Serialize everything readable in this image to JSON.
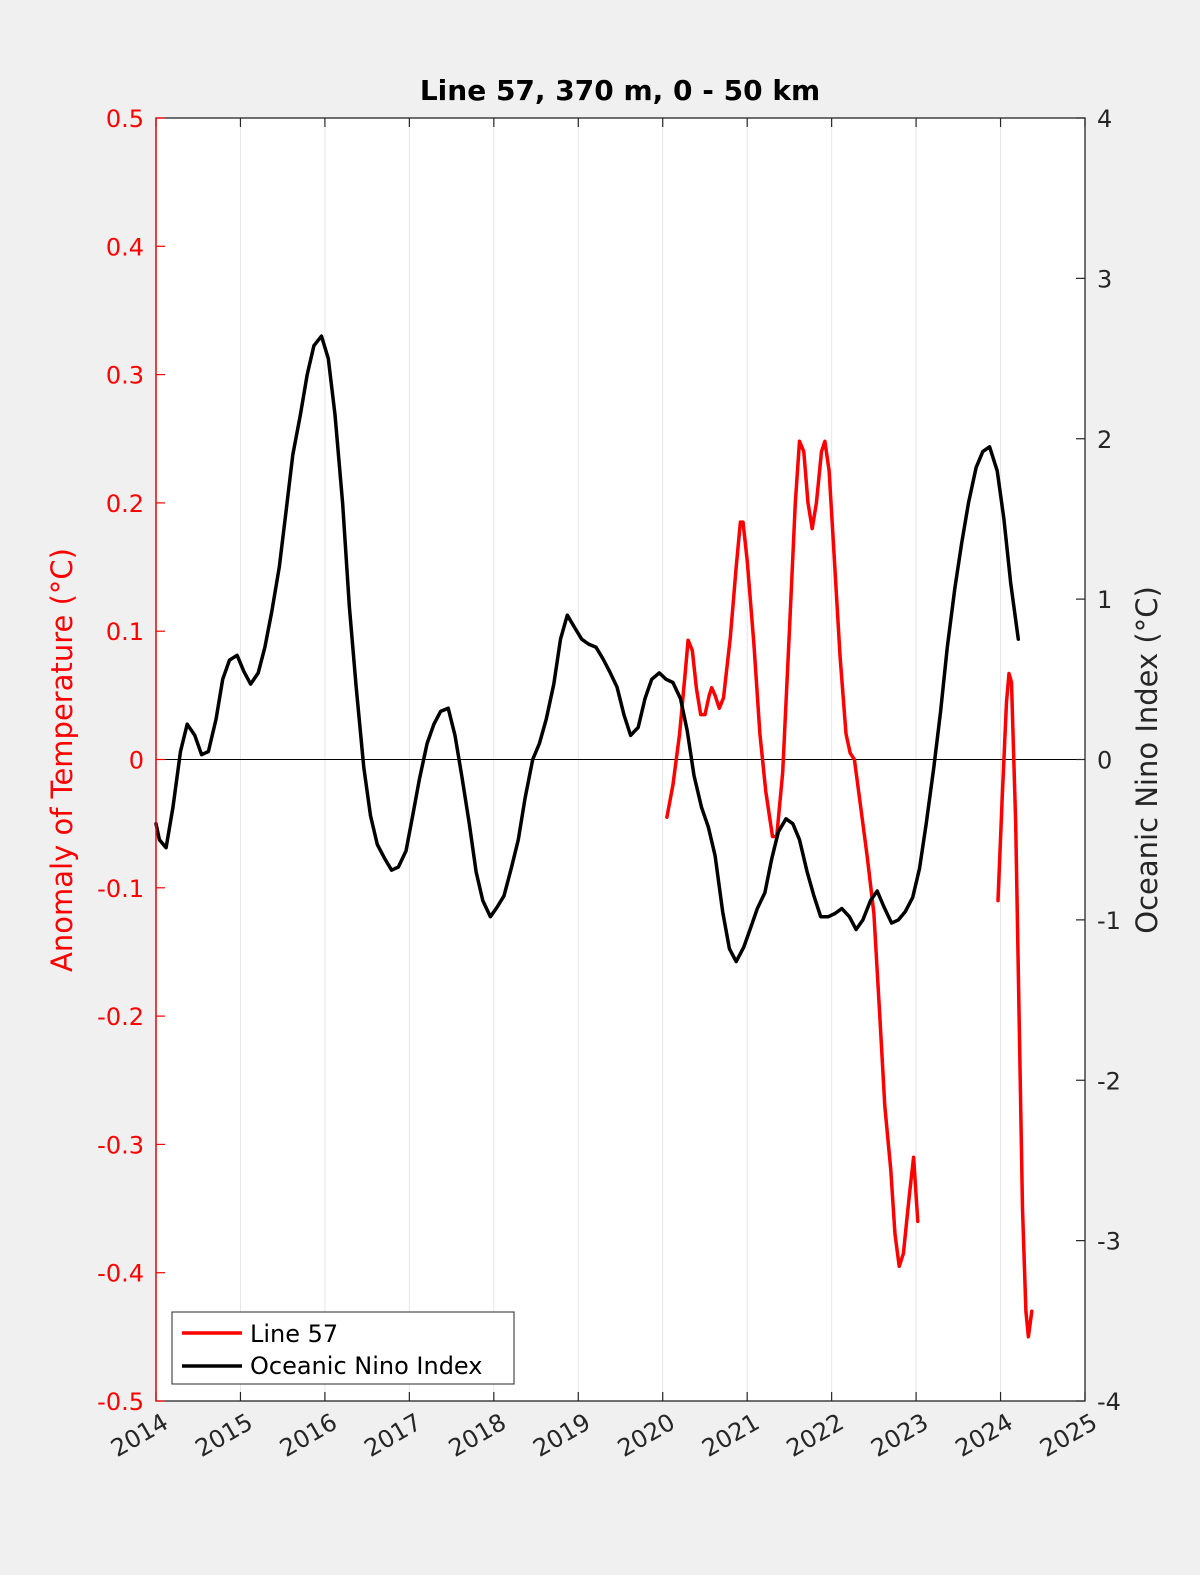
{
  "chart_data": {
    "type": "line",
    "title": "Line 57, 370 m, 0 - 50 km",
    "xlabel": "",
    "ylabel_left": "Anomaly of Temperature (°C)",
    "ylabel_right": "Oceanic Nino Index (°C)",
    "xlim": [
      2014,
      2025
    ],
    "ylim_left": [
      -0.5,
      0.5
    ],
    "ylim_right": [
      -4,
      4
    ],
    "x_ticks": [
      "2014",
      "2015",
      "2016",
      "2017",
      "2018",
      "2019",
      "2020",
      "2021",
      "2022",
      "2023",
      "2024",
      "2025"
    ],
    "y_left_ticks": [
      "0.5",
      "0.4",
      "0.3",
      "0.2",
      "0.1",
      "0",
      "-0.1",
      "-0.2",
      "-0.3",
      "-0.4",
      "-0.5"
    ],
    "y_right_ticks": [
      "4",
      "3",
      "2",
      "1",
      "0",
      "-1",
      "-2",
      "-3",
      "-4"
    ],
    "grid": "vertical",
    "legend_position": "bottom-left",
    "colors": {
      "line57": "#ff0000",
      "oni": "#000000",
      "left_axis": "#ff0000",
      "right_axis": "#262626"
    },
    "series": [
      {
        "name": "Line 57",
        "axis": "left",
        "segments": [
          [
            [
              2020.05,
              -0.045
            ],
            [
              2020.12,
              -0.02
            ],
            [
              2020.2,
              0.02
            ],
            [
              2020.27,
              0.07
            ],
            [
              2020.3,
              0.093
            ],
            [
              2020.35,
              0.085
            ],
            [
              2020.4,
              0.055
            ],
            [
              2020.45,
              0.035
            ],
            [
              2020.5,
              0.035
            ],
            [
              2020.55,
              0.05
            ],
            [
              2020.58,
              0.056
            ],
            [
              2020.62,
              0.05
            ],
            [
              2020.67,
              0.04
            ],
            [
              2020.72,
              0.048
            ],
            [
              2020.8,
              0.095
            ],
            [
              2020.87,
              0.15
            ],
            [
              2020.92,
              0.185
            ],
            [
              2020.95,
              0.185
            ],
            [
              2021.0,
              0.155
            ],
            [
              2021.08,
              0.09
            ],
            [
              2021.15,
              0.02
            ],
            [
              2021.22,
              -0.025
            ],
            [
              2021.3,
              -0.06
            ],
            [
              2021.35,
              -0.06
            ],
            [
              2021.42,
              -0.01
            ],
            [
              2021.5,
              0.1
            ],
            [
              2021.57,
              0.2
            ],
            [
              2021.62,
              0.248
            ],
            [
              2021.67,
              0.24
            ],
            [
              2021.72,
              0.2
            ],
            [
              2021.77,
              0.18
            ],
            [
              2021.82,
              0.2
            ],
            [
              2021.88,
              0.24
            ],
            [
              2021.92,
              0.248
            ],
            [
              2021.97,
              0.225
            ],
            [
              2022.02,
              0.17
            ],
            [
              2022.1,
              0.08
            ],
            [
              2022.17,
              0.02
            ],
            [
              2022.22,
              0.005
            ],
            [
              2022.27,
              0.0
            ],
            [
              2022.35,
              -0.04
            ],
            [
              2022.42,
              -0.075
            ],
            [
              2022.5,
              -0.12
            ],
            [
              2022.57,
              -0.2
            ],
            [
              2022.63,
              -0.27
            ],
            [
              2022.7,
              -0.32
            ],
            [
              2022.75,
              -0.37
            ],
            [
              2022.8,
              -0.395
            ],
            [
              2022.85,
              -0.385
            ],
            [
              2022.92,
              -0.34
            ],
            [
              2022.97,
              -0.31
            ],
            [
              2023.02,
              -0.36
            ]
          ],
          [
            [
              2023.97,
              -0.11
            ],
            [
              2024.02,
              -0.03
            ],
            [
              2024.07,
              0.045
            ],
            [
              2024.1,
              0.067
            ],
            [
              2024.13,
              0.06
            ],
            [
              2024.18,
              -0.05
            ],
            [
              2024.22,
              -0.2
            ],
            [
              2024.26,
              -0.35
            ],
            [
              2024.3,
              -0.43
            ],
            [
              2024.33,
              -0.45
            ],
            [
              2024.37,
              -0.43
            ]
          ]
        ]
      },
      {
        "name": "Oceanic Nino Index",
        "axis": "right",
        "segments": [
          [
            [
              2014.0,
              -0.4
            ],
            [
              2014.04,
              -0.5
            ],
            [
              2014.12,
              -0.55
            ],
            [
              2014.2,
              -0.3
            ],
            [
              2014.29,
              0.05
            ],
            [
              2014.37,
              0.22
            ],
            [
              2014.46,
              0.15
            ],
            [
              2014.54,
              0.03
            ],
            [
              2014.62,
              0.05
            ],
            [
              2014.71,
              0.25
            ],
            [
              2014.79,
              0.5
            ],
            [
              2014.87,
              0.62
            ],
            [
              2014.96,
              0.65
            ],
            [
              2015.04,
              0.55
            ],
            [
              2015.12,
              0.47
            ],
            [
              2015.21,
              0.54
            ],
            [
              2015.29,
              0.7
            ],
            [
              2015.37,
              0.92
            ],
            [
              2015.46,
              1.2
            ],
            [
              2015.54,
              1.55
            ],
            [
              2015.62,
              1.9
            ],
            [
              2015.71,
              2.15
            ],
            [
              2015.79,
              2.4
            ],
            [
              2015.87,
              2.58
            ],
            [
              2015.96,
              2.64
            ],
            [
              2016.04,
              2.5
            ],
            [
              2016.12,
              2.15
            ],
            [
              2016.21,
              1.6
            ],
            [
              2016.29,
              0.95
            ],
            [
              2016.37,
              0.45
            ],
            [
              2016.46,
              -0.05
            ],
            [
              2016.54,
              -0.35
            ],
            [
              2016.62,
              -0.53
            ],
            [
              2016.71,
              -0.62
            ],
            [
              2016.79,
              -0.69
            ],
            [
              2016.87,
              -0.67
            ],
            [
              2016.96,
              -0.57
            ],
            [
              2017.04,
              -0.35
            ],
            [
              2017.12,
              -0.12
            ],
            [
              2017.21,
              0.1
            ],
            [
              2017.29,
              0.22
            ],
            [
              2017.37,
              0.3
            ],
            [
              2017.46,
              0.32
            ],
            [
              2017.54,
              0.15
            ],
            [
              2017.62,
              -0.1
            ],
            [
              2017.71,
              -0.4
            ],
            [
              2017.79,
              -0.7
            ],
            [
              2017.87,
              -0.88
            ],
            [
              2017.96,
              -0.98
            ],
            [
              2018.04,
              -0.92
            ],
            [
              2018.12,
              -0.85
            ],
            [
              2018.21,
              -0.67
            ],
            [
              2018.29,
              -0.5
            ],
            [
              2018.37,
              -0.24
            ],
            [
              2018.46,
              0.0
            ],
            [
              2018.54,
              0.1
            ],
            [
              2018.62,
              0.25
            ],
            [
              2018.71,
              0.47
            ],
            [
              2018.79,
              0.75
            ],
            [
              2018.87,
              0.9
            ],
            [
              2018.96,
              0.82
            ],
            [
              2019.04,
              0.75
            ],
            [
              2019.12,
              0.72
            ],
            [
              2019.21,
              0.7
            ],
            [
              2019.29,
              0.63
            ],
            [
              2019.37,
              0.55
            ],
            [
              2019.46,
              0.45
            ],
            [
              2019.54,
              0.28
            ],
            [
              2019.62,
              0.15
            ],
            [
              2019.71,
              0.2
            ],
            [
              2019.79,
              0.38
            ],
            [
              2019.87,
              0.5
            ],
            [
              2019.96,
              0.54
            ],
            [
              2020.04,
              0.5
            ],
            [
              2020.12,
              0.48
            ],
            [
              2020.21,
              0.38
            ],
            [
              2020.29,
              0.18
            ],
            [
              2020.37,
              -0.1
            ],
            [
              2020.46,
              -0.3
            ],
            [
              2020.54,
              -0.42
            ],
            [
              2020.62,
              -0.6
            ],
            [
              2020.71,
              -0.95
            ],
            [
              2020.79,
              -1.18
            ],
            [
              2020.87,
              -1.26
            ],
            [
              2020.96,
              -1.17
            ],
            [
              2021.04,
              -1.05
            ],
            [
              2021.12,
              -0.93
            ],
            [
              2021.21,
              -0.83
            ],
            [
              2021.29,
              -0.62
            ],
            [
              2021.37,
              -0.45
            ],
            [
              2021.46,
              -0.37
            ],
            [
              2021.54,
              -0.4
            ],
            [
              2021.62,
              -0.5
            ],
            [
              2021.71,
              -0.7
            ],
            [
              2021.79,
              -0.85
            ],
            [
              2021.87,
              -0.98
            ],
            [
              2021.96,
              -0.98
            ],
            [
              2022.04,
              -0.96
            ],
            [
              2022.12,
              -0.93
            ],
            [
              2022.21,
              -0.98
            ],
            [
              2022.29,
              -1.06
            ],
            [
              2022.37,
              -1.0
            ],
            [
              2022.46,
              -0.88
            ],
            [
              2022.54,
              -0.82
            ],
            [
              2022.62,
              -0.92
            ],
            [
              2022.71,
              -1.02
            ],
            [
              2022.79,
              -1.0
            ],
            [
              2022.87,
              -0.95
            ],
            [
              2022.96,
              -0.86
            ],
            [
              2023.04,
              -0.68
            ],
            [
              2023.12,
              -0.4
            ],
            [
              2023.21,
              -0.05
            ],
            [
              2023.29,
              0.3
            ],
            [
              2023.37,
              0.7
            ],
            [
              2023.46,
              1.07
            ],
            [
              2023.54,
              1.35
            ],
            [
              2023.62,
              1.6
            ],
            [
              2023.71,
              1.82
            ],
            [
              2023.79,
              1.92
            ],
            [
              2023.87,
              1.95
            ],
            [
              2023.96,
              1.8
            ],
            [
              2024.04,
              1.5
            ],
            [
              2024.12,
              1.1
            ],
            [
              2024.21,
              0.75
            ]
          ]
        ]
      }
    ]
  }
}
